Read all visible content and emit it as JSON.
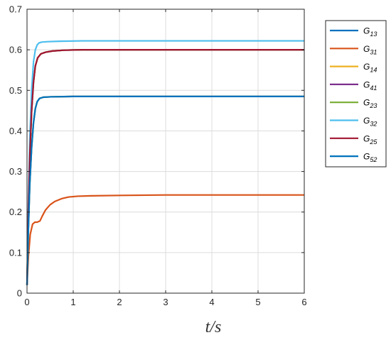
{
  "chart_data": {
    "type": "line",
    "xlabel": "t/s",
    "ylabel": "",
    "title": "",
    "xlim": [
      0,
      6
    ],
    "ylim": [
      0,
      0.7
    ],
    "x_ticks": [
      0,
      1,
      2,
      3,
      4,
      5,
      6
    ],
    "x_tick_labels": [
      "0",
      "1",
      "2",
      "3",
      "4",
      "5",
      "6"
    ],
    "y_ticks": [
      0,
      0.1,
      0.2,
      0.3,
      0.4,
      0.5,
      0.6,
      0.7
    ],
    "y_tick_labels": [
      "0",
      "0.1",
      "0.2",
      "0.3",
      "0.4",
      "0.5",
      "0.6",
      "0.7"
    ],
    "grid": true,
    "legend_position": "outside-right-top",
    "series": [
      {
        "name": "G13",
        "base": "G",
        "sub": "13",
        "color": "#0072BD",
        "x": [
          0,
          0.03,
          0.06,
          0.1,
          0.14,
          0.18,
          0.22,
          0.27,
          0.35,
          0.5,
          1.0,
          2.0,
          6.0
        ],
        "y": [
          0.02,
          0.16,
          0.27,
          0.36,
          0.42,
          0.455,
          0.472,
          0.48,
          0.483,
          0.484,
          0.485,
          0.485,
          0.485
        ]
      },
      {
        "name": "G31",
        "base": "G",
        "sub": "31",
        "color": "#D95319",
        "x": [
          0,
          0.03,
          0.07,
          0.12,
          0.17,
          0.22,
          0.28,
          0.33,
          0.4,
          0.5,
          0.6,
          0.75,
          0.9,
          1.1,
          1.4,
          2.0,
          3.0,
          6.0
        ],
        "y": [
          0.02,
          0.09,
          0.145,
          0.17,
          0.175,
          0.175,
          0.178,
          0.19,
          0.205,
          0.218,
          0.226,
          0.233,
          0.237,
          0.239,
          0.24,
          0.241,
          0.242,
          0.242
        ]
      },
      {
        "name": "G14",
        "base": "G",
        "sub": "14",
        "color": "#EDB120",
        "x": [
          0,
          0.03,
          0.06,
          0.1,
          0.14,
          0.18,
          0.22,
          0.27,
          0.35,
          0.5,
          1.0,
          2.0,
          6.0
        ],
        "y": [
          0.02,
          0.16,
          0.27,
          0.36,
          0.42,
          0.455,
          0.472,
          0.48,
          0.483,
          0.484,
          0.485,
          0.485,
          0.485
        ]
      },
      {
        "name": "G41",
        "base": "G",
        "sub": "41",
        "color": "#7E2F8E",
        "x": [
          0,
          0.03,
          0.06,
          0.1,
          0.14,
          0.18,
          0.23,
          0.3,
          0.4,
          0.55,
          0.8,
          1.2,
          2.0,
          6.0
        ],
        "y": [
          0.02,
          0.2,
          0.34,
          0.45,
          0.52,
          0.56,
          0.58,
          0.59,
          0.594,
          0.597,
          0.599,
          0.6,
          0.6,
          0.6
        ]
      },
      {
        "name": "G23",
        "base": "G",
        "sub": "23",
        "color": "#77AC30",
        "x": [
          0,
          0.03,
          0.06,
          0.1,
          0.14,
          0.18,
          0.23,
          0.3,
          0.4,
          0.55,
          0.8,
          1.2,
          2.0,
          6.0
        ],
        "y": [
          0.02,
          0.2,
          0.34,
          0.45,
          0.52,
          0.56,
          0.58,
          0.59,
          0.594,
          0.597,
          0.599,
          0.6,
          0.6,
          0.6
        ]
      },
      {
        "name": "G32",
        "base": "G",
        "sub": "32",
        "color": "#4DBEEE",
        "x": [
          0,
          0.03,
          0.06,
          0.1,
          0.14,
          0.18,
          0.22,
          0.26,
          0.32,
          0.45,
          0.7,
          1.2,
          2.0,
          6.0
        ],
        "y": [
          0.02,
          0.22,
          0.38,
          0.5,
          0.57,
          0.6,
          0.612,
          0.617,
          0.619,
          0.62,
          0.621,
          0.622,
          0.622,
          0.622
        ]
      },
      {
        "name": "G25",
        "base": "G",
        "sub": "25",
        "color": "#A2142F",
        "x": [
          0,
          0.03,
          0.06,
          0.1,
          0.14,
          0.18,
          0.23,
          0.3,
          0.4,
          0.55,
          0.8,
          1.2,
          2.0,
          6.0
        ],
        "y": [
          0.02,
          0.2,
          0.34,
          0.45,
          0.52,
          0.56,
          0.58,
          0.59,
          0.594,
          0.597,
          0.599,
          0.6,
          0.6,
          0.6
        ]
      },
      {
        "name": "G52",
        "base": "G",
        "sub": "52",
        "color": "#0072BD",
        "x": [
          0,
          0.03,
          0.06,
          0.1,
          0.14,
          0.18,
          0.22,
          0.27,
          0.35,
          0.5,
          1.0,
          2.0,
          6.0
        ],
        "y": [
          0.02,
          0.16,
          0.27,
          0.36,
          0.42,
          0.455,
          0.472,
          0.48,
          0.483,
          0.484,
          0.485,
          0.485,
          0.485
        ]
      }
    ]
  }
}
